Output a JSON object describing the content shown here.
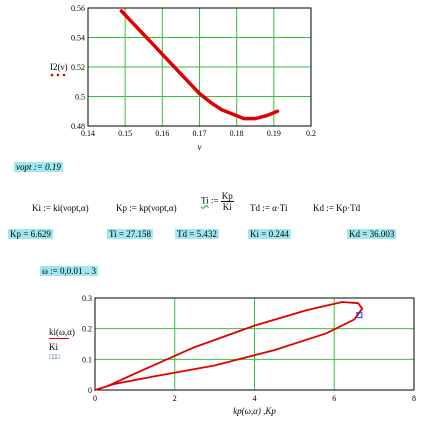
{
  "chart_data": [
    {
      "type": "line",
      "title": "",
      "xlabel": "ν",
      "ylabel": "I2(ν)",
      "xlim": [
        0.14,
        0.2
      ],
      "ylim": [
        0.48,
        0.56
      ],
      "xticks": [
        "0.14",
        "0.15",
        "0.16",
        "0.17",
        "0.18",
        "0.19",
        "0.2"
      ],
      "yticks": [
        "0.48",
        "0.5",
        "0.52",
        "0.54",
        "0.56"
      ],
      "grid": true,
      "series": [
        {
          "color": "#e00000",
          "points": [
            [
              0.149,
              0.558
            ],
            [
              0.152,
              0.55
            ],
            [
              0.155,
              0.542
            ],
            [
              0.158,
              0.534
            ],
            [
              0.161,
              0.526
            ],
            [
              0.164,
              0.518
            ],
            [
              0.167,
              0.51
            ],
            [
              0.17,
              0.502
            ],
            [
              0.173,
              0.496
            ],
            [
              0.176,
              0.491
            ],
            [
              0.179,
              0.488
            ],
            [
              0.182,
              0.485
            ],
            [
              0.185,
              0.485
            ],
            [
              0.188,
              0.487
            ],
            [
              0.191,
              0.49
            ]
          ]
        }
      ]
    },
    {
      "type": "line",
      "title": "",
      "xlabel": "kp(ω,α) ,Kp",
      "ylabel": "ki(ω,α)",
      "ylabel2": "Ki",
      "xlim": [
        0,
        8
      ],
      "ylim": [
        0,
        0.3
      ],
      "xticks": [
        "0",
        "2",
        "4",
        "6",
        "8"
      ],
      "yticks": [
        "0",
        "0.1",
        "0.2",
        "0.3"
      ],
      "grid": true,
      "series": [
        {
          "color": "#e00000",
          "points": [
            [
              0,
              0
            ],
            [
              0.5,
              0.02
            ],
            [
              1.5,
              0.045
            ],
            [
              3,
              0.08
            ],
            [
              4.5,
              0.13
            ],
            [
              5.8,
              0.185
            ],
            [
              6.5,
              0.23
            ],
            [
              6.7,
              0.265
            ],
            [
              6.6,
              0.283
            ],
            [
              6.2,
              0.287
            ],
            [
              5.3,
              0.26
            ],
            [
              4,
              0.21
            ],
            [
              2.5,
              0.14
            ],
            [
              1.2,
              0.065
            ],
            [
              0.3,
              0.012
            ],
            [
              0,
              0
            ]
          ]
        },
        {
          "color": "#3333cc",
          "marker": "square",
          "points": [
            [
              6.629,
              0.244
            ]
          ]
        }
      ]
    }
  ],
  "text": {
    "nuopt": "νopt := 0.19",
    "def_ki": "Ki := ki(νopt,α)",
    "def_kp": "Kp := kp(νopt,α)",
    "def_ti_lhs": "Ti",
    "def_ti_op": ":=",
    "def_ti_num": "Kp",
    "def_ti_den": "Ki",
    "def_td": "Td := α·Ti",
    "def_kd": "Kd := Kp·Td",
    "res_kp": "Kp = 6.629",
    "res_ti": "Ti = 27.158",
    "res_td": "Td = 5.432",
    "res_ki": "Ki = 0.244",
    "res_kd": "Kd = 36.003",
    "omega_range": "ω := 0,0.01 .. 3",
    "legend_ki_markers": "□□□"
  }
}
